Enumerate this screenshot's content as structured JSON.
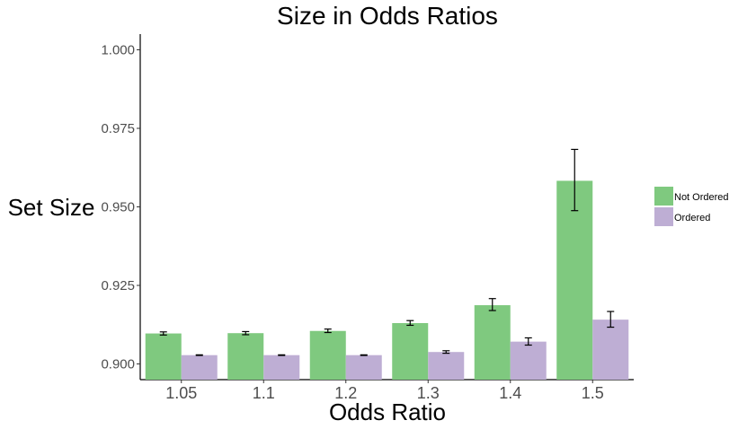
{
  "chart_data": {
    "type": "bar",
    "title": "Size in Odds Ratios",
    "xlabel": "Odds Ratio",
    "ylabel": "Set Size",
    "categories": [
      "1.05",
      "1.1",
      "1.2",
      "1.3",
      "1.4",
      "1.5"
    ],
    "ylim": [
      0.895,
      1.005
    ],
    "yticks": [
      0.9,
      0.925,
      0.95,
      0.975,
      1.0
    ],
    "ytick_labels": [
      "0.900",
      "0.925",
      "0.950",
      "0.975",
      "1.000"
    ],
    "grid": false,
    "legend_position": "right",
    "series": [
      {
        "name": "Not Ordered",
        "color": "#7fc97f",
        "values": [
          0.9097,
          0.9098,
          0.9105,
          0.913,
          0.9187,
          0.9583
        ],
        "err_low": [
          0.9092,
          0.9093,
          0.91,
          0.9123,
          0.917,
          0.9488
        ],
        "err_high": [
          0.9102,
          0.9103,
          0.9111,
          0.9138,
          0.9208,
          0.9683
        ]
      },
      {
        "name": "Ordered",
        "color": "#beaed4",
        "values": [
          0.9028,
          0.9028,
          0.9028,
          0.9038,
          0.9071,
          0.9141
        ],
        "err_low": [
          0.9027,
          0.9027,
          0.9027,
          0.9034,
          0.906,
          0.9117
        ],
        "err_high": [
          0.9029,
          0.9029,
          0.9029,
          0.9042,
          0.9083,
          0.9167
        ]
      }
    ]
  }
}
